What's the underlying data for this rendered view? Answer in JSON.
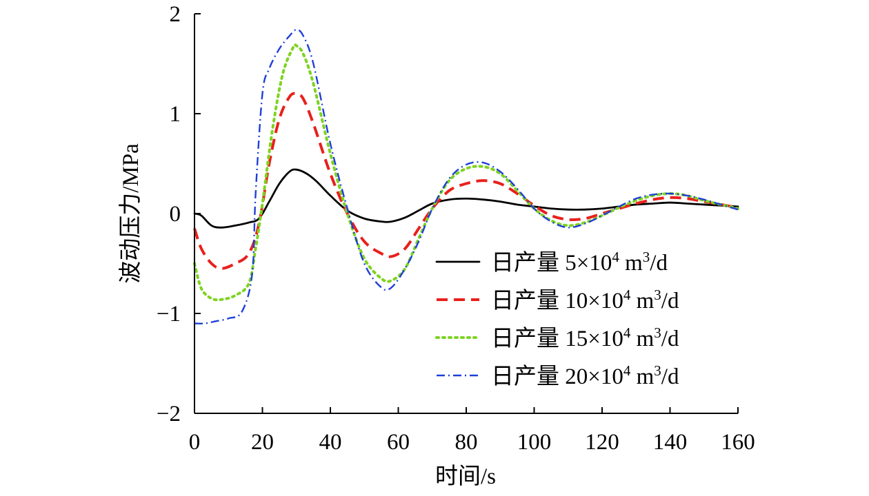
{
  "chart_data": {
    "type": "line",
    "title": "",
    "xlabel": "时间/s",
    "ylabel": "波动压力/MPa",
    "xlim": [
      0,
      160
    ],
    "ylim": [
      -2,
      2
    ],
    "xticks": [
      "0",
      "20",
      "40",
      "60",
      "80",
      "100",
      "120",
      "140",
      "160"
    ],
    "yticks": [
      "2",
      "1",
      "0",
      "−1",
      "−2"
    ],
    "legend_position": "center-right",
    "series": [
      {
        "name": "日产量 5×10⁴ m³/d",
        "legend": {
          "prefix": "日产量 5×10",
          "exp": "4",
          "m": " m",
          "m_exp": "3",
          "suffix": "/d"
        },
        "color": "#000000",
        "style": "solid",
        "x": [
          0,
          2,
          5,
          8,
          12,
          16,
          19,
          22,
          25,
          28,
          30,
          33,
          36,
          40,
          45,
          50,
          55,
          58,
          62,
          66,
          70,
          75,
          80,
          85,
          90,
          95,
          100,
          105,
          110,
          115,
          120,
          125,
          130,
          135,
          140,
          145,
          150,
          155,
          160
        ],
        "y": [
          0.0,
          -0.02,
          -0.12,
          -0.14,
          -0.12,
          -0.09,
          -0.05,
          0.12,
          0.3,
          0.42,
          0.44,
          0.4,
          0.32,
          0.18,
          0.03,
          -0.05,
          -0.08,
          -0.08,
          -0.04,
          0.03,
          0.1,
          0.14,
          0.15,
          0.14,
          0.12,
          0.09,
          0.07,
          0.05,
          0.04,
          0.04,
          0.05,
          0.07,
          0.09,
          0.1,
          0.11,
          0.1,
          0.09,
          0.08,
          0.07
        ]
      },
      {
        "name": "日产量 10×10⁴ m³/d",
        "legend": {
          "prefix": "日产量 10×10",
          "exp": "4",
          "m": " m",
          "m_exp": "3",
          "suffix": "/d"
        },
        "color": "#e8201c",
        "style": "dashed",
        "x": [
          0,
          2,
          5,
          8,
          12,
          16,
          19,
          22,
          25,
          28,
          30,
          32,
          35,
          40,
          45,
          50,
          55,
          58,
          62,
          66,
          70,
          75,
          80,
          85,
          90,
          95,
          100,
          105,
          110,
          115,
          120,
          125,
          130,
          135,
          140,
          145,
          150,
          155,
          160
        ],
        "y": [
          -0.15,
          -0.35,
          -0.5,
          -0.55,
          -0.5,
          -0.4,
          -0.1,
          0.5,
          0.95,
          1.17,
          1.2,
          1.15,
          0.9,
          0.4,
          0.0,
          -0.28,
          -0.4,
          -0.43,
          -0.35,
          -0.15,
          0.05,
          0.23,
          0.3,
          0.33,
          0.3,
          0.2,
          0.08,
          -0.02,
          -0.06,
          -0.05,
          0.0,
          0.05,
          0.1,
          0.14,
          0.16,
          0.15,
          0.12,
          0.09,
          0.06
        ]
      },
      {
        "name": "日产量 15×10⁴ m³/d",
        "legend": {
          "prefix": "日产量 15×10",
          "exp": "4",
          "m": " m",
          "m_exp": "3",
          "suffix": "/d"
        },
        "color": "#7ed321",
        "style": "dotted",
        "x": [
          0,
          2,
          5,
          8,
          12,
          16,
          18,
          20,
          23,
          26,
          29,
          30,
          32,
          35,
          40,
          45,
          50,
          55,
          58,
          62,
          66,
          70,
          75,
          80,
          85,
          90,
          95,
          100,
          105,
          110,
          115,
          120,
          125,
          130,
          135,
          140,
          145,
          150,
          155,
          160
        ],
        "y": [
          -0.5,
          -0.75,
          -0.85,
          -0.86,
          -0.82,
          -0.7,
          -0.35,
          0.1,
          0.85,
          1.4,
          1.66,
          1.68,
          1.6,
          1.3,
          0.6,
          0.0,
          -0.45,
          -0.65,
          -0.67,
          -0.55,
          -0.25,
          0.05,
          0.33,
          0.45,
          0.47,
          0.4,
          0.23,
          0.05,
          -0.07,
          -0.12,
          -0.09,
          -0.02,
          0.06,
          0.13,
          0.18,
          0.2,
          0.18,
          0.13,
          0.09,
          0.05
        ]
      },
      {
        "name": "日产量 20×10⁴ m³/d",
        "legend": {
          "prefix": "日产量 20×10",
          "exp": "4",
          "m": " m",
          "m_exp": "3",
          "suffix": "/d"
        },
        "color": "#1f3fd8",
        "style": "dashdot",
        "x": [
          0,
          3,
          6,
          10,
          14,
          17,
          18,
          20,
          22,
          25,
          28,
          30,
          32,
          35,
          40,
          45,
          50,
          55,
          58,
          62,
          66,
          70,
          75,
          80,
          85,
          90,
          95,
          100,
          105,
          110,
          115,
          120,
          125,
          130,
          135,
          140,
          145,
          150,
          155,
          160
        ],
        "y": [
          -1.1,
          -1.1,
          -1.08,
          -1.05,
          -0.98,
          -0.6,
          0.2,
          1.2,
          1.45,
          1.65,
          1.78,
          1.84,
          1.78,
          1.5,
          0.7,
          0.05,
          -0.5,
          -0.74,
          -0.74,
          -0.55,
          -0.28,
          0.05,
          0.35,
          0.49,
          0.51,
          0.42,
          0.25,
          0.05,
          -0.08,
          -0.14,
          -0.1,
          -0.02,
          0.07,
          0.15,
          0.19,
          0.2,
          0.18,
          0.14,
          0.09,
          0.04
        ]
      }
    ]
  }
}
